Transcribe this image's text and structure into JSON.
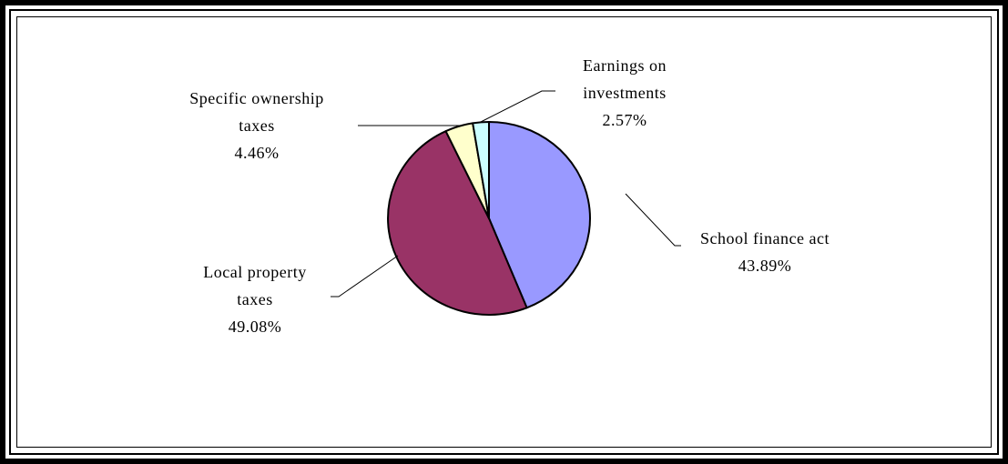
{
  "chart_data": {
    "type": "pie",
    "slices": [
      {
        "label_lines": [
          "School finance act",
          "43.89%"
        ],
        "value": 43.89,
        "color": "#9999ff"
      },
      {
        "label_lines": [
          "Local property",
          "taxes",
          "49.08%"
        ],
        "value": 49.08,
        "color": "#993366"
      },
      {
        "label_lines": [
          "Specific ownership",
          "taxes",
          "4.46%"
        ],
        "value": 4.46,
        "color": "#ffffcc"
      },
      {
        "label_lines": [
          "Earnings on",
          "investments",
          "2.57%"
        ],
        "value": 2.57,
        "color": "#ccffff"
      }
    ],
    "start_angle": "12 o'clock",
    "direction": "clockwise",
    "legend": "none"
  }
}
